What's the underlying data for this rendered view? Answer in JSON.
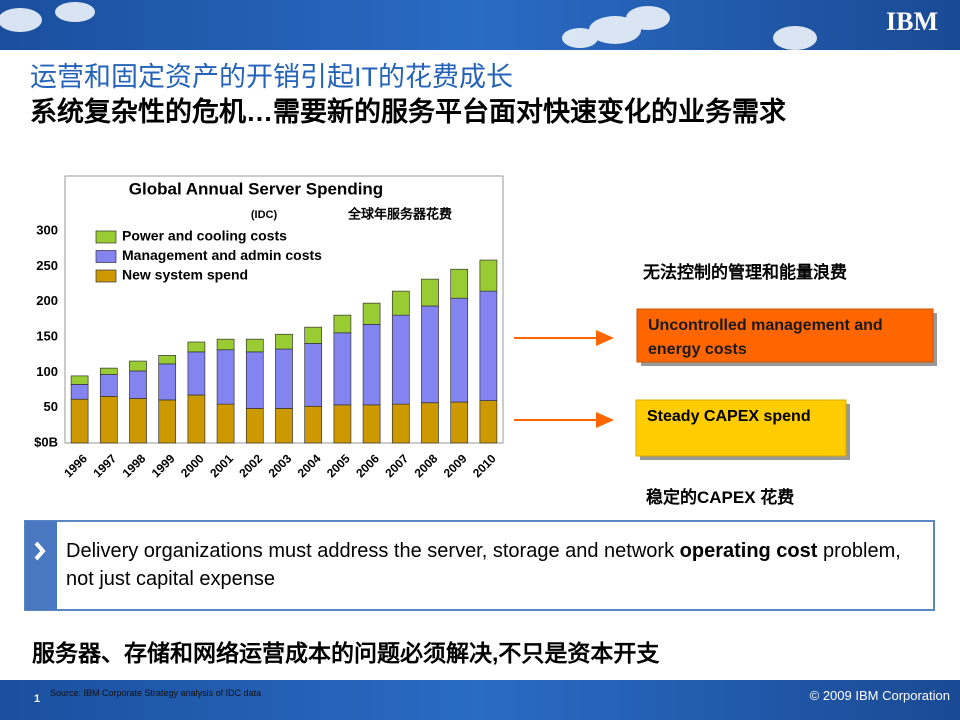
{
  "header": {
    "logo": "IBM",
    "title": "运营和固定资产的开销引起IT的花费成长",
    "subtitle": "系统复杂性的危机…需要新的服务平台面对快速变化的业务需求"
  },
  "chart_data": {
    "type": "stacked_bar",
    "title": "Global Annual Server Spending",
    "subtitle": "(IDC)",
    "annotation": "全球年服务器花费",
    "categories": [
      "1996",
      "1997",
      "1998",
      "1999",
      "2000",
      "2001",
      "2002",
      "2003",
      "2004",
      "2005",
      "2006",
      "2007",
      "2008",
      "2009",
      "2010"
    ],
    "series": [
      {
        "name": "Power and cooling costs",
        "color": "#99cc33",
        "values": [
          12,
          9,
          14,
          12,
          14,
          15,
          18,
          21,
          23,
          25,
          30,
          34,
          38,
          41,
          44
        ]
      },
      {
        "name": "Management and admin costs",
        "color": "#8484f0",
        "values": [
          21,
          31,
          39,
          51,
          61,
          77,
          80,
          84,
          89,
          102,
          114,
          126,
          137,
          147,
          155
        ]
      },
      {
        "name": "New system spend",
        "color": "#cc9900",
        "values": [
          62,
          66,
          63,
          61,
          68,
          55,
          49,
          49,
          52,
          54,
          54,
          55,
          57,
          58,
          60
        ]
      }
    ],
    "ylim": [
      0,
      378
    ],
    "yticks": [
      {
        "value": 0,
        "label": "$0B"
      },
      50,
      100,
      150,
      200,
      250,
      300
    ],
    "grid": false,
    "legend": "top-left"
  },
  "callouts": {
    "top_note": "无法控制的管理和能量浪费",
    "orange_box": "Uncontrolled management and energy costs",
    "yellow_box": "Steady CAPEX spend",
    "bottom_note": "稳定的CAPEX 花费"
  },
  "message": {
    "parts": [
      "Delivery organizations must address the server, storage and network ",
      "operating cost",
      " problem, not just capital expense"
    ]
  },
  "conclusion": "服务器、存储和网络运营成本的问题必须解决,不只是资本开支",
  "footer": {
    "page": "1",
    "source": "Source: IBM Corporate Strategy analysis of IDC data",
    "copyright": "© 2009 IBM Corporation"
  }
}
